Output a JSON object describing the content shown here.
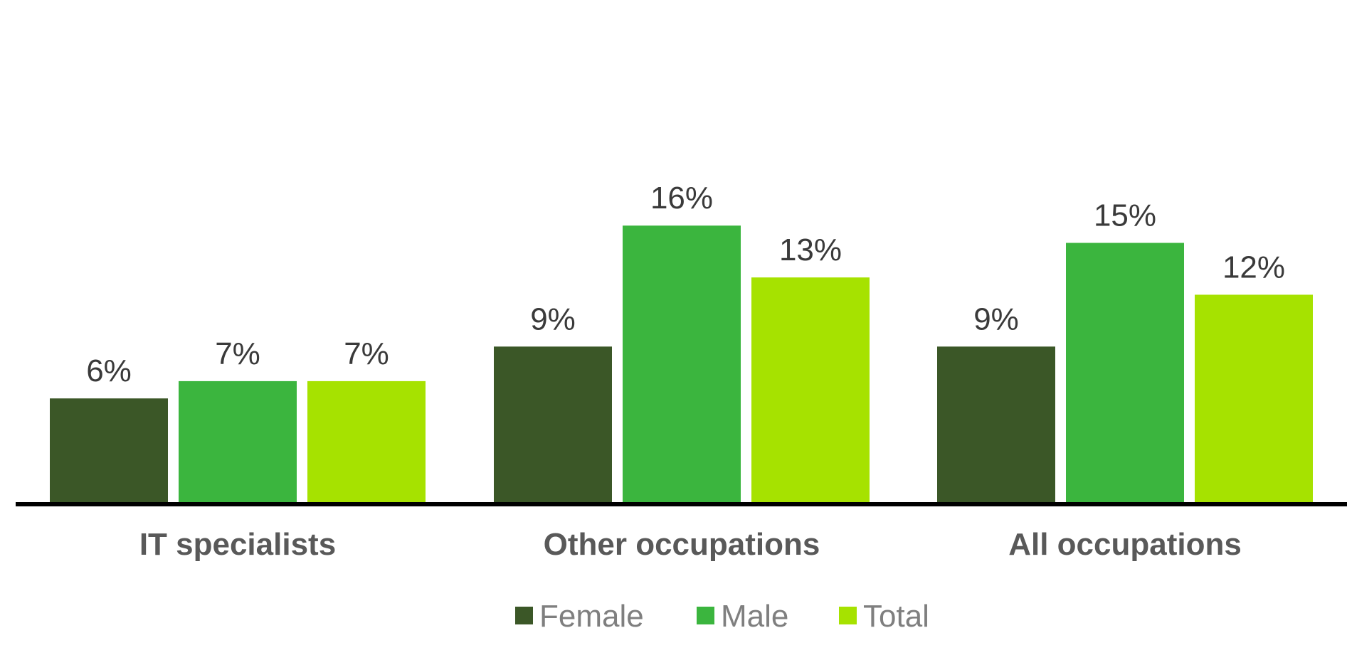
{
  "chart_data": {
    "type": "bar",
    "categories": [
      "IT specialists",
      "Other occupations",
      "All occupations"
    ],
    "series": [
      {
        "name": "Female",
        "values": [
          6,
          9,
          9
        ],
        "labels": [
          "6%",
          "9%",
          "9%"
        ],
        "color": "#3b5727"
      },
      {
        "name": "Male",
        "values": [
          7,
          16,
          15
        ],
        "labels": [
          "7%",
          "16%",
          "15%"
        ],
        "color": "#3bb53e"
      },
      {
        "name": "Total",
        "values": [
          7,
          13,
          12
        ],
        "labels": [
          "7%",
          "13%",
          "12%"
        ],
        "color": "#a6e200"
      }
    ],
    "title": "",
    "xlabel": "",
    "ylabel": "",
    "ylim": [
      0,
      24
    ],
    "grid": false,
    "legend_position": "bottom",
    "axis_color": "#000000"
  }
}
